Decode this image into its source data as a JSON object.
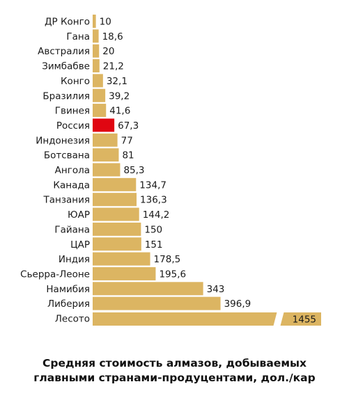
{
  "chart_data": {
    "type": "bar",
    "orientation": "horizontal",
    "title": "Средняя стоимость алмазов, добываемых главными странами-продуцентами, дол./кар",
    "title_lines": [
      "Средняя стоимость алмазов, добываемых",
      "главными странами-продуцентами, дол./кар"
    ],
    "categories": [
      "ДР Конго",
      "Гана",
      "Австралия",
      "Зимбабве",
      "Конго",
      "Бразилия",
      "Гвинея",
      "Россия",
      "Индонезия",
      "Ботсвана",
      "Ангола",
      "Канада",
      "Танзания",
      "ЮАР",
      "Гайана",
      "ЦАР",
      "Индия",
      "Сьерра-Леоне",
      "Намибия",
      "Либерия",
      "Лесото"
    ],
    "values": [
      10,
      18.6,
      20,
      21.2,
      32.1,
      39.2,
      41.6,
      67.3,
      77,
      81,
      85.3,
      134.7,
      136.3,
      144.2,
      150,
      151,
      178.5,
      195.6,
      343,
      396.9,
      1455
    ],
    "value_labels": [
      "10",
      "18,6",
      "20",
      "21,2",
      "32,1",
      "39,2",
      "41,6",
      "67,3",
      "77",
      "81",
      "85,3",
      "134,7",
      "136,3",
      "144,2",
      "150",
      "151",
      "178,5",
      "195,6",
      "343",
      "396,9",
      "1455"
    ],
    "highlight": "Россия",
    "broken_axis_category": "Лесото",
    "colors": {
      "bar": "#dcb562",
      "highlight": "#e00612",
      "highlight_text": "#d40a14",
      "text": "#1a1a1a"
    }
  }
}
